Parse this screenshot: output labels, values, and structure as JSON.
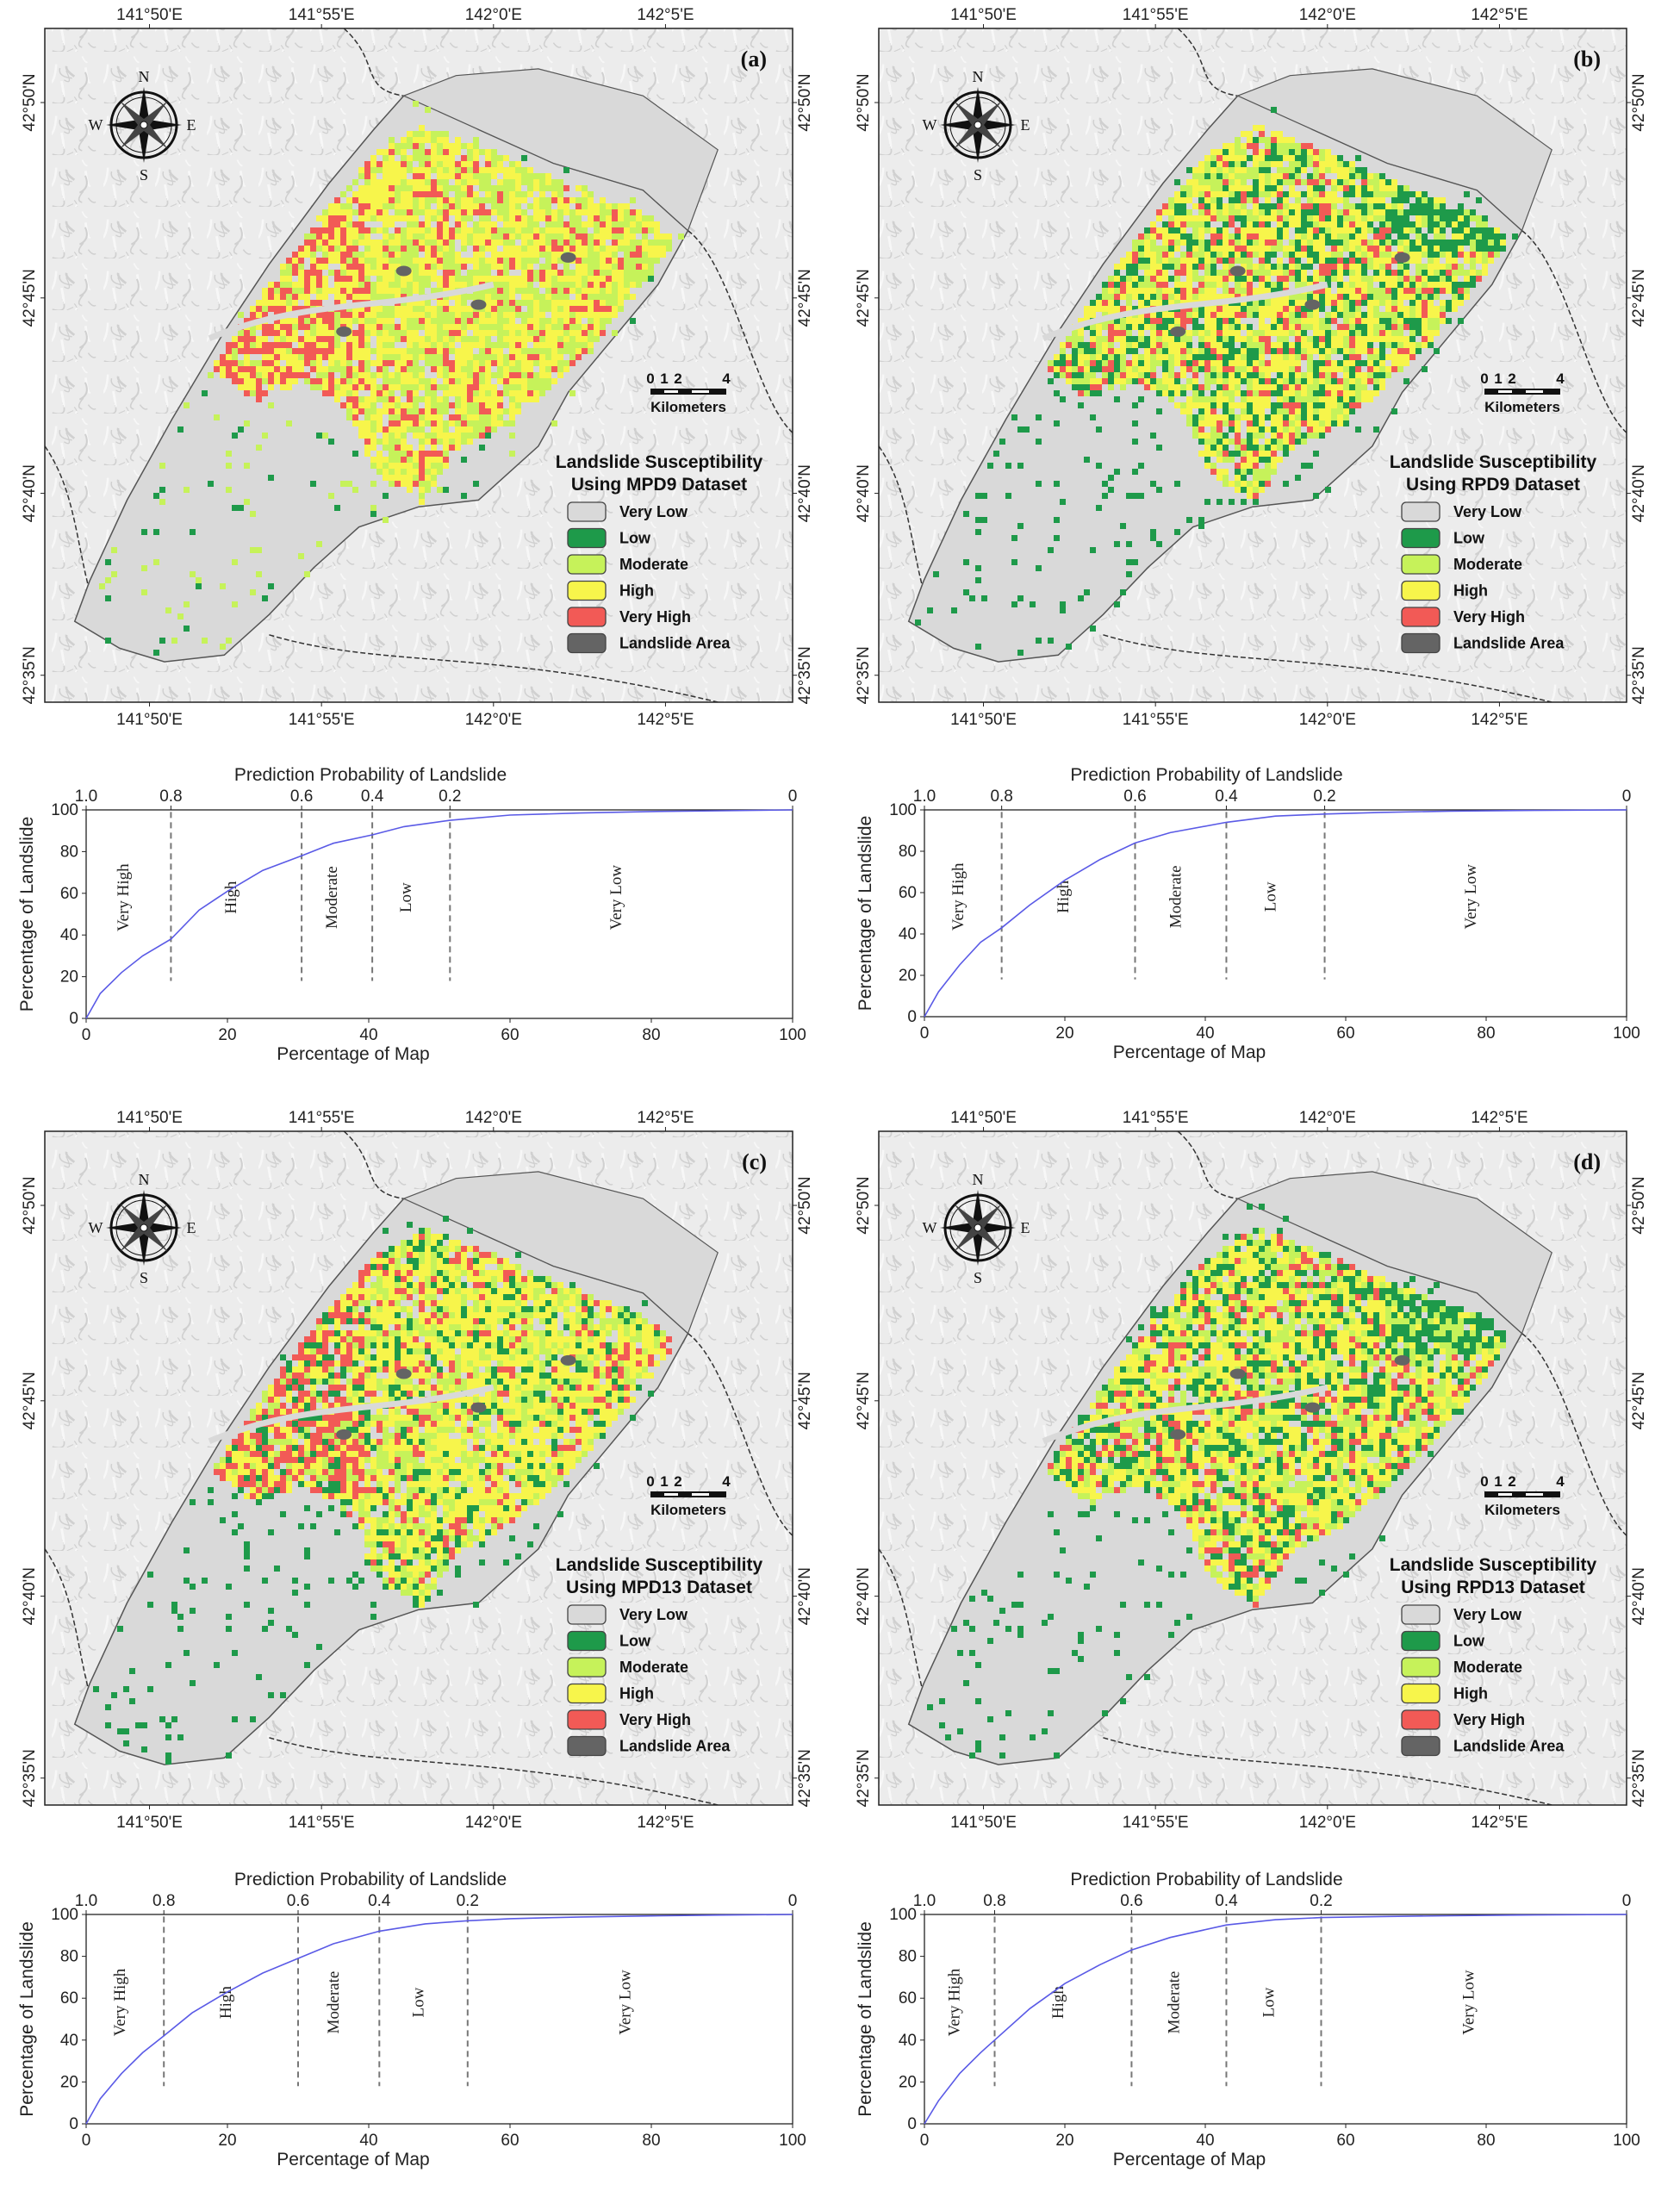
{
  "figure": {
    "panels": [
      {
        "id": "a",
        "panel_label": "(a)",
        "legend_title_line1": "Landslide Susceptibility",
        "legend_title_line2": "Using MPD9 Dataset",
        "pattern": "mpd"
      },
      {
        "id": "b",
        "panel_label": "(b)",
        "legend_title_line1": "Landslide Susceptibility",
        "legend_title_line2": "Using RPD9 Dataset",
        "pattern": "rpd"
      },
      {
        "id": "c",
        "panel_label": "(c)",
        "legend_title_line1": "Landslide Susceptibility",
        "legend_title_line2": "Using MPD13 Dataset",
        "pattern": "mpd13"
      },
      {
        "id": "d",
        "panel_label": "(d)",
        "legend_title_line1": "Landslide Susceptibility",
        "legend_title_line2": "Using RPD13 Dataset",
        "pattern": "rpd13"
      }
    ],
    "map_common": {
      "lon_labels": [
        "141°50'E",
        "141°55'E",
        "142°0'E",
        "142°5'E"
      ],
      "lat_labels": [
        "42°50'N",
        "42°45'N",
        "42°40'N",
        "42°35'N"
      ],
      "compass": {
        "n": "N",
        "s": "S",
        "e": "E",
        "w": "W"
      },
      "scale_ticks": [
        "0",
        "1",
        "2",
        "4"
      ],
      "scale_unit": "Kilometers",
      "legend_items": [
        {
          "label": "Very Low",
          "color": "#d9d9d9"
        },
        {
          "label": "Low",
          "color": "#1e9a4a"
        },
        {
          "label": "Moderate",
          "color": "#c6f25a"
        },
        {
          "label": "High",
          "color": "#f7f54b"
        },
        {
          "label": "Very High",
          "color": "#f25a56"
        },
        {
          "label": "Landslide Area",
          "color": "#646464"
        }
      ]
    },
    "chart_common": {
      "top_axis_title": "Prediction Probability of Landslide",
      "x_axis_title": "Percentage of Map",
      "y_axis_title": "Percentage of Landslide",
      "zone_names": [
        "Very High",
        "High",
        "Moderate",
        "Low",
        "Very Low"
      ],
      "line_color": "#5a5ae6"
    }
  },
  "chart_data": [
    {
      "type": "line",
      "panel": "a",
      "title": "",
      "xlabel": "Percentage of Map",
      "ylabel": "Percentage of Landslide",
      "top_xlabel": "Prediction Probability of Landslide",
      "xlim": [
        0,
        100
      ],
      "ylim": [
        0,
        100
      ],
      "x_ticks": [
        "0",
        "20",
        "40",
        "60",
        "80",
        "100"
      ],
      "y_ticks": [
        "0",
        "20",
        "40",
        "60",
        "80",
        "100"
      ],
      "top_ticks": [
        {
          "label": "1.0",
          "x": 0
        },
        {
          "label": "0.8",
          "x": 12
        },
        {
          "label": "0.6",
          "x": 30.5
        },
        {
          "label": "0.4",
          "x": 40.5
        },
        {
          "label": "0.2",
          "x": 51.5
        },
        {
          "label": "0",
          "x": 100
        }
      ],
      "dividers": [
        12,
        30.5,
        40.5,
        51.5
      ],
      "x": [
        0,
        2,
        5,
        8,
        12,
        16,
        20,
        25,
        30.5,
        35,
        40.5,
        45,
        51.5,
        60,
        70,
        80,
        90,
        100
      ],
      "y": [
        0,
        12,
        22,
        30,
        38,
        52,
        61,
        71,
        78,
        84,
        88,
        92,
        95,
        97.5,
        98.5,
        99.2,
        99.6,
        100
      ]
    },
    {
      "type": "line",
      "panel": "b",
      "title": "",
      "xlabel": "Percentage of Map",
      "ylabel": "Percentage of Landslide",
      "top_xlabel": "Prediction Probability of Landslide",
      "xlim": [
        0,
        100
      ],
      "ylim": [
        0,
        100
      ],
      "x_ticks": [
        "0",
        "20",
        "40",
        "60",
        "80",
        "100"
      ],
      "y_ticks": [
        "0",
        "20",
        "40",
        "60",
        "80",
        "100"
      ],
      "top_ticks": [
        {
          "label": "1.0",
          "x": 0
        },
        {
          "label": "0.8",
          "x": 11
        },
        {
          "label": "0.6",
          "x": 30
        },
        {
          "label": "0.4",
          "x": 43
        },
        {
          "label": "0.2",
          "x": 57
        },
        {
          "label": "0",
          "x": 100
        }
      ],
      "dividers": [
        11,
        30,
        43,
        57
      ],
      "x": [
        0,
        2,
        5,
        8,
        11,
        15,
        20,
        25,
        30,
        35,
        43,
        50,
        57,
        65,
        75,
        85,
        100
      ],
      "y": [
        0,
        12,
        25,
        36,
        43,
        54,
        66,
        76,
        84,
        89,
        94,
        97,
        98,
        98.8,
        99.4,
        99.7,
        100
      ]
    },
    {
      "type": "line",
      "panel": "c",
      "title": "",
      "xlabel": "Percentage of Map",
      "ylabel": "Percentage of Landslide",
      "top_xlabel": "Prediction Probability of Landslide",
      "xlim": [
        0,
        100
      ],
      "ylim": [
        0,
        100
      ],
      "x_ticks": [
        "0",
        "20",
        "40",
        "60",
        "80",
        "100"
      ],
      "y_ticks": [
        "0",
        "20",
        "40",
        "60",
        "80",
        "100"
      ],
      "top_ticks": [
        {
          "label": "1.0",
          "x": 0
        },
        {
          "label": "0.8",
          "x": 11
        },
        {
          "label": "0.6",
          "x": 30
        },
        {
          "label": "0.4",
          "x": 41.5
        },
        {
          "label": "0.2",
          "x": 54
        },
        {
          "label": "0",
          "x": 100
        }
      ],
      "dividers": [
        11,
        30,
        41.5,
        54
      ],
      "x": [
        0,
        2,
        5,
        8,
        11,
        15,
        20,
        25,
        30,
        35,
        41.5,
        48,
        54,
        60,
        70,
        80,
        90,
        100
      ],
      "y": [
        0,
        12,
        24,
        34,
        42,
        53,
        63,
        72,
        79,
        86,
        92,
        95.5,
        97,
        98,
        98.8,
        99.3,
        99.7,
        100
      ]
    },
    {
      "type": "line",
      "panel": "d",
      "title": "",
      "xlabel": "Percentage of Map",
      "ylabel": "Percentage of Landslide",
      "top_xlabel": "Prediction Probability of Landslide",
      "xlim": [
        0,
        100
      ],
      "ylim": [
        0,
        100
      ],
      "x_ticks": [
        "0",
        "20",
        "40",
        "60",
        "80",
        "100"
      ],
      "y_ticks": [
        "0",
        "20",
        "40",
        "60",
        "80",
        "100"
      ],
      "top_ticks": [
        {
          "label": "1.0",
          "x": 0
        },
        {
          "label": "0.8",
          "x": 10
        },
        {
          "label": "0.6",
          "x": 29.5
        },
        {
          "label": "0.4",
          "x": 43
        },
        {
          "label": "0.2",
          "x": 56.5
        },
        {
          "label": "0",
          "x": 100
        }
      ],
      "dividers": [
        10,
        29.5,
        43,
        56.5
      ],
      "x": [
        0,
        2,
        5,
        8,
        10,
        15,
        20,
        25,
        29.5,
        35,
        43,
        50,
        56.5,
        65,
        75,
        85,
        100
      ],
      "y": [
        0,
        11,
        24,
        34,
        40,
        55,
        67,
        76,
        83,
        89,
        95,
        97.5,
        98.5,
        99,
        99.4,
        99.7,
        100
      ]
    }
  ]
}
